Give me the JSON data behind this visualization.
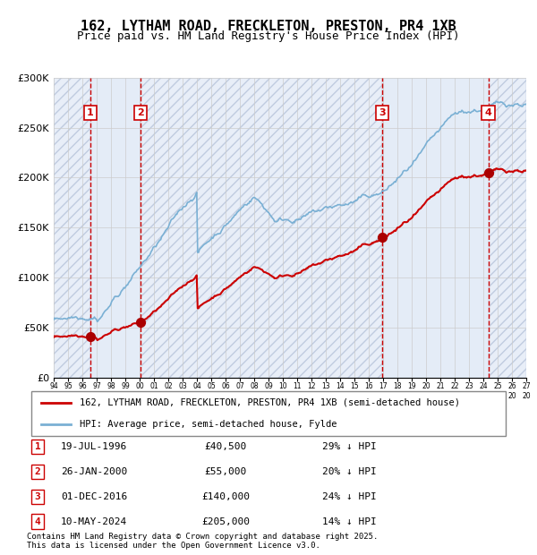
{
  "title": "162, LYTHAM ROAD, FRECKLETON, PRESTON, PR4 1XB",
  "subtitle": "Price paid vs. HM Land Registry's House Price Index (HPI)",
  "legend_label_red": "162, LYTHAM ROAD, FRECKLETON, PRESTON, PR4 1XB (semi-detached house)",
  "legend_label_blue": "HPI: Average price, semi-detached house, Fylde",
  "footer_line1": "Contains HM Land Registry data © Crown copyright and database right 2025.",
  "footer_line2": "This data is licensed under the Open Government Licence v3.0.",
  "transactions": [
    {
      "num": 1,
      "date": "19-JUL-1996",
      "price": 40500,
      "pct": "29%",
      "x_year": 1996.55
    },
    {
      "num": 2,
      "date": "26-JAN-2000",
      "price": 55000,
      "pct": "20%",
      "x_year": 2000.07
    },
    {
      "num": 3,
      "date": "01-DEC-2016",
      "price": 140000,
      "pct": "24%",
      "x_year": 2016.92
    },
    {
      "num": 4,
      "date": "10-MAY-2024",
      "price": 205000,
      "pct": "14%",
      "x_year": 2024.36
    }
  ],
  "ylim": [
    0,
    300000
  ],
  "xlim_start": 1994.0,
  "xlim_end": 2027.0,
  "ytick_values": [
    0,
    50000,
    100000,
    150000,
    200000,
    250000,
    300000
  ],
  "ytick_labels": [
    "£0",
    "£50K",
    "£100K",
    "£150K",
    "£200K",
    "£250K",
    "£300K"
  ],
  "bg_color": "#f0f4fa",
  "hatched_bg_color": "#dce8f5",
  "grid_color": "#cccccc",
  "red_color": "#cc0000",
  "blue_color": "#7ab0d4",
  "dashed_red": "#cc0000",
  "box_outline": "#cc0000",
  "sale_dot_color": "#aa0000"
}
